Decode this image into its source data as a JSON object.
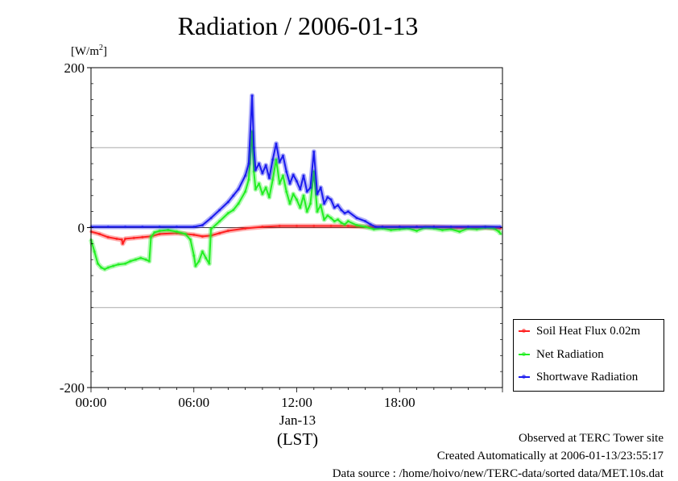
{
  "header": {
    "title": "Radiation / 2006-01-13",
    "unit_main": "[W/m",
    "unit_sup": "2",
    "unit_close": "]"
  },
  "footer": {
    "line1": "Observed at TERC Tower site",
    "line2": "Created Automatically at 2006-01-13/23:55:17",
    "line3": "Data source : /home/hoivo/new/TERC-data/sorted  data/MET.10s.dat"
  },
  "colors": {
    "soil": "#ff2020",
    "net": "#22ee22",
    "shortwave": "#1a1aee",
    "grid": "#aaaaaa"
  },
  "chart_data": {
    "type": "line",
    "title": "Radiation / 2006-01-13",
    "ylabel": "[W/m2]",
    "xlabel": "(LST)",
    "xlim": [
      0,
      24
    ],
    "ylim": [
      -200,
      200
    ],
    "yticks": [
      {
        "value": 200,
        "label": "200"
      },
      {
        "value": 0,
        "label": "0"
      },
      {
        "value": -200,
        "label": "-200"
      }
    ],
    "ygrid": [
      100,
      -100
    ],
    "xticks": [
      {
        "value": 0,
        "label": "00:00"
      },
      {
        "value": 6,
        "label": "06:00"
      },
      {
        "value": 12,
        "label": "12:00"
      },
      {
        "value": 18,
        "label": "18:00"
      }
    ],
    "date_label": "Jan-13",
    "x_unit_label": "(LST)",
    "legend_position": "right",
    "series": [
      {
        "name": "Soil Heat Flux 0.02m",
        "color": "#ff2020",
        "x": [
          0,
          0.5,
          1,
          1.5,
          1.8,
          1.85,
          2.0,
          2.5,
          3,
          3.5,
          4,
          5,
          6,
          6.5,
          7,
          7.5,
          8,
          9,
          10,
          11,
          12,
          13,
          14,
          15,
          16,
          17,
          18,
          19,
          20,
          21,
          22,
          23,
          23.9
        ],
        "values": [
          -5,
          -8,
          -12,
          -14,
          -15,
          -20,
          -14,
          -13,
          -12,
          -11,
          -8,
          -7,
          -9,
          -11,
          -10,
          -7,
          -4,
          -1,
          1,
          2,
          2,
          2,
          2,
          2,
          1,
          1,
          1,
          1,
          1,
          0,
          0,
          0,
          -1
        ]
      },
      {
        "name": "Net Radiation",
        "color": "#22ee22",
        "x": [
          0,
          0.2,
          0.4,
          0.6,
          0.8,
          1.0,
          1.3,
          1.6,
          2.0,
          2.3,
          2.6,
          2.9,
          3.2,
          3.4,
          3.5,
          3.7,
          4.0,
          4.5,
          5.0,
          5.5,
          5.8,
          6.0,
          6.1,
          6.3,
          6.5,
          6.7,
          6.9,
          7.0,
          7.5,
          8.0,
          8.3,
          8.6,
          9.0,
          9.2,
          9.4,
          9.5,
          9.6,
          9.8,
          10.0,
          10.2,
          10.4,
          10.6,
          10.8,
          11.0,
          11.2,
          11.4,
          11.6,
          11.8,
          12.0,
          12.2,
          12.4,
          12.6,
          12.8,
          13.0,
          13.2,
          13.4,
          13.6,
          13.8,
          14.0,
          14.2,
          14.4,
          14.6,
          14.8,
          15.0,
          15.5,
          16.0,
          16.5,
          17.0,
          17.5,
          18.0,
          18.5,
          19.0,
          19.5,
          20.0,
          20.5,
          21.0,
          21.5,
          22.0,
          22.5,
          23.0,
          23.5,
          23.8,
          23.9
        ],
        "values": [
          -15,
          -30,
          -45,
          -50,
          -52,
          -50,
          -48,
          -46,
          -45,
          -42,
          -40,
          -38,
          -40,
          -42,
          -12,
          -6,
          -4,
          -3,
          -5,
          -8,
          -15,
          -35,
          -48,
          -42,
          -30,
          -38,
          -45,
          -2,
          8,
          18,
          22,
          30,
          45,
          60,
          120,
          70,
          48,
          55,
          42,
          50,
          38,
          60,
          85,
          55,
          65,
          45,
          30,
          42,
          35,
          25,
          40,
          20,
          30,
          70,
          20,
          28,
          10,
          15,
          12,
          8,
          10,
          6,
          4,
          8,
          3,
          1,
          -2,
          -1,
          -3,
          -2,
          -1,
          -4,
          0,
          -1,
          -3,
          -2,
          -5,
          -1,
          -2,
          0,
          -1,
          -5,
          -8
        ]
      },
      {
        "name": "Shortwave Radiation",
        "color": "#1a1aee",
        "x": [
          0,
          1,
          2,
          3,
          4,
          5,
          6,
          6.5,
          7.0,
          7.5,
          8.0,
          8.3,
          8.6,
          9.0,
          9.2,
          9.4,
          9.5,
          9.6,
          9.8,
          10.0,
          10.2,
          10.4,
          10.6,
          10.8,
          11.0,
          11.2,
          11.4,
          11.6,
          11.8,
          12.0,
          12.2,
          12.4,
          12.6,
          12.8,
          13.0,
          13.2,
          13.4,
          13.6,
          13.8,
          14.0,
          14.2,
          14.4,
          14.6,
          14.8,
          15.0,
          15.5,
          16.0,
          16.3,
          16.6,
          17,
          18,
          19,
          20,
          21,
          22,
          23,
          23.9
        ],
        "values": [
          1,
          1,
          1,
          1,
          1,
          1,
          1,
          3,
          12,
          22,
          32,
          40,
          48,
          65,
          80,
          165,
          100,
          72,
          80,
          68,
          78,
          62,
          85,
          105,
          82,
          90,
          70,
          55,
          66,
          58,
          48,
          65,
          45,
          50,
          95,
          42,
          50,
          30,
          38,
          35,
          25,
          28,
          22,
          18,
          20,
          12,
          8,
          4,
          1,
          1,
          1,
          1,
          1,
          1,
          1,
          1,
          1
        ]
      }
    ]
  }
}
